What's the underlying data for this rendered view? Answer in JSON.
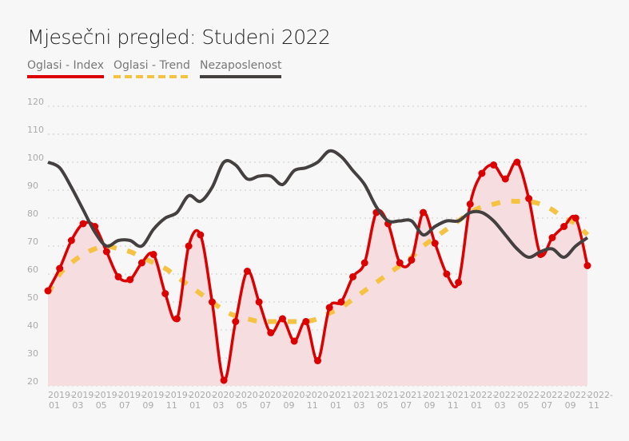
{
  "chart_data": {
    "type": "line",
    "title": "Mjesečni pregled: Studeni 2022",
    "xlabel": "",
    "ylabel": "",
    "ylim": [
      20,
      120
    ],
    "yticks": [
      20,
      30,
      40,
      50,
      60,
      70,
      80,
      90,
      100,
      110,
      120
    ],
    "grid": true,
    "legend_position": "top-left",
    "x": [
      "2019-01",
      "2019-02",
      "2019-03",
      "2019-04",
      "2019-05",
      "2019-06",
      "2019-07",
      "2019-08",
      "2019-09",
      "2019-10",
      "2019-11",
      "2019-12",
      "2020-01",
      "2020-02",
      "2020-03",
      "2020-04",
      "2020-05",
      "2020-06",
      "2020-07",
      "2020-08",
      "2020-09",
      "2020-10",
      "2020-11",
      "2020-12",
      "2021-01",
      "2021-02",
      "2021-03",
      "2021-04",
      "2021-05",
      "2021-06",
      "2021-07",
      "2021-08",
      "2021-09",
      "2021-10",
      "2021-11",
      "2021-12",
      "2022-01",
      "2022-02",
      "2022-03",
      "2022-04",
      "2022-05",
      "2022-06",
      "2022-07",
      "2022-08",
      "2022-09",
      "2022-10",
      "2022-11"
    ],
    "xtick_labels": [
      [
        "2019-",
        "01"
      ],
      [
        "2019-",
        "03"
      ],
      [
        "2019-",
        "05"
      ],
      [
        "2019-",
        "07"
      ],
      [
        "2019-",
        "09"
      ],
      [
        "2019-",
        "11"
      ],
      [
        "2020-",
        "01"
      ],
      [
        "2020-",
        "03"
      ],
      [
        "2020-",
        "05"
      ],
      [
        "2020-",
        "07"
      ],
      [
        "2020-",
        "09"
      ],
      [
        "2020-",
        "11"
      ],
      [
        "2021-",
        "01"
      ],
      [
        "2021-",
        "03"
      ],
      [
        "2021-",
        "05"
      ],
      [
        "2021-",
        "07"
      ],
      [
        "2021-",
        "09"
      ],
      [
        "2021-",
        "11"
      ],
      [
        "2022-",
        "01"
      ],
      [
        "2022-",
        "03"
      ],
      [
        "2022-",
        "05"
      ],
      [
        "2022-",
        "07"
      ],
      [
        "2022-",
        "09"
      ],
      [
        "2022-",
        "11"
      ]
    ],
    "series": [
      {
        "name": "Oglasi - Index",
        "color": "#dd0000",
        "style": "solid-markers-area",
        "values": [
          54,
          62,
          72,
          78,
          77,
          68,
          59,
          58,
          64,
          67,
          53,
          44,
          70,
          74,
          50,
          22,
          43,
          61,
          50,
          39,
          44,
          36,
          43,
          29,
          48,
          50,
          59,
          64,
          82,
          78,
          64,
          65,
          82,
          71,
          60,
          57,
          85,
          96,
          99,
          94,
          100,
          87,
          67,
          73,
          77,
          80,
          63
        ]
      },
      {
        "name": "Oglasi - Trend",
        "color": "#f5c242",
        "style": "dashed",
        "values": [
          53,
          60,
          64,
          67,
          69,
          70,
          69,
          68,
          66,
          64,
          62,
          59,
          56,
          53,
          50,
          47,
          45,
          44,
          43,
          43,
          43,
          43,
          43,
          44,
          46,
          48,
          51,
          54,
          57,
          60,
          63,
          66,
          70,
          73,
          76,
          79,
          82,
          84,
          85,
          86,
          86,
          86,
          85,
          83,
          80,
          78,
          74
        ]
      },
      {
        "name": "Nezaposlenost",
        "color": "#444040",
        "style": "solid",
        "values": [
          100,
          98,
          91,
          83,
          75,
          70,
          72,
          72,
          70,
          76,
          80,
          82,
          88,
          86,
          91,
          100,
          99,
          94,
          95,
          95,
          92,
          97,
          98,
          100,
          104,
          102,
          97,
          92,
          84,
          79,
          79,
          79,
          74,
          77,
          79,
          79,
          82,
          82,
          79,
          74,
          69,
          66,
          68,
          69,
          66,
          70,
          73
        ]
      }
    ]
  }
}
